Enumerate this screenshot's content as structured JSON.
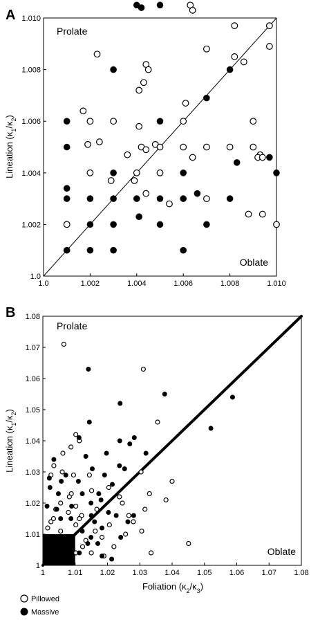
{
  "chart_data": [
    {
      "type": "scatter",
      "panel": "A",
      "xlabel": "",
      "ylabel_parts": [
        "Lineation (κ",
        "1",
        "/κ",
        "2",
        ")"
      ],
      "xlim": [
        1.0,
        1.01
      ],
      "ylim": [
        1.0,
        1.01
      ],
      "x_ticks": [
        1.0,
        1.002,
        1.004,
        1.006,
        1.008,
        1.01
      ],
      "y_ticks": [
        1.0,
        1.002,
        1.004,
        1.006,
        1.008,
        1.01
      ],
      "x_tick_labels": [
        "1.0",
        "1.002",
        "1.004",
        "1.006",
        "1.008",
        "1.010"
      ],
      "y_tick_labels": [
        "1.0",
        "1.002",
        "1.004",
        "1.006",
        "1.008",
        "1.010"
      ],
      "corner_labels": {
        "top_left": "Prolate",
        "bottom_right": "Oblate"
      },
      "reference_line": {
        "x": [
          1.0,
          1.01
        ],
        "y": [
          1.0,
          1.01
        ]
      },
      "series": [
        {
          "style": "open",
          "points": [
            [
              1.0017,
              1.0064
            ],
            [
              1.0023,
              1.0086
            ],
            [
              1.0044,
              1.0082
            ],
            [
              1.0045,
              1.008
            ],
            [
              1.0043,
              1.0075
            ],
            [
              1.0041,
              1.0072
            ],
            [
              1.0063,
              1.0105
            ],
            [
              1.0064,
              1.0103
            ],
            [
              1.007,
              1.0088
            ],
            [
              1.0082,
              1.0085
            ],
            [
              1.0086,
              1.0083
            ],
            [
              1.0082,
              1.0097
            ],
            [
              1.0097,
              1.0097
            ],
            [
              1.0097,
              1.0089
            ],
            [
              1.0061,
              1.0067
            ],
            [
              1.001,
              1.002
            ],
            [
              1.002,
              1.004
            ],
            [
              1.002,
              1.006
            ],
            [
              1.0019,
              1.0051
            ],
            [
              1.0024,
              1.0052
            ],
            [
              1.003,
              1.006
            ],
            [
              1.0029,
              1.0037
            ],
            [
              1.0036,
              1.0047
            ],
            [
              1.0039,
              1.0037
            ],
            [
              1.004,
              1.004
            ],
            [
              1.0041,
              1.0058
            ],
            [
              1.0042,
              1.005
            ],
            [
              1.0044,
              1.0049
            ],
            [
              1.0044,
              1.0032
            ],
            [
              1.0048,
              1.0051
            ],
            [
              1.005,
              1.005
            ],
            [
              1.005,
              1.004
            ],
            [
              1.0054,
              1.0028
            ],
            [
              1.006,
              1.006
            ],
            [
              1.006,
              1.005
            ],
            [
              1.0064,
              1.0046
            ],
            [
              1.007,
              1.005
            ],
            [
              1.007,
              1.003
            ],
            [
              1.008,
              1.005
            ],
            [
              1.0088,
              1.0024
            ],
            [
              1.009,
              1.006
            ],
            [
              1.009,
              1.005
            ],
            [
              1.0093,
              1.0047
            ],
            [
              1.0092,
              1.0046
            ],
            [
              1.0094,
              1.0046
            ],
            [
              1.0094,
              1.0024
            ],
            [
              1.01,
              1.002
            ]
          ]
        },
        {
          "style": "filled",
          "points": [
            [
              1.004,
              1.0105
            ],
            [
              1.0042,
              1.0104
            ],
            [
              1.005,
              1.0105
            ],
            [
              1.003,
              1.008
            ],
            [
              1.008,
              1.008
            ],
            [
              1.007,
              1.0069
            ],
            [
              1.001,
              1.006
            ],
            [
              1.001,
              1.005
            ],
            [
              1.001,
              1.0034
            ],
            [
              1.001,
              1.003
            ],
            [
              1.001,
              1.001
            ],
            [
              1.002,
              1.003
            ],
            [
              1.002,
              1.002
            ],
            [
              1.002,
              1.001
            ],
            [
              1.003,
              1.004
            ],
            [
              1.003,
              1.003
            ],
            [
              1.003,
              1.002
            ],
            [
              1.003,
              1.001
            ],
            [
              1.004,
              1.003
            ],
            [
              1.0041,
              1.0023
            ],
            [
              1.005,
              1.006
            ],
            [
              1.005,
              1.003
            ],
            [
              1.005,
              1.002
            ],
            [
              1.006,
              1.004
            ],
            [
              1.006,
              1.003
            ],
            [
              1.006,
              1.001
            ],
            [
              1.0066,
              1.0032
            ],
            [
              1.007,
              1.002
            ],
            [
              1.008,
              1.003
            ],
            [
              1.0083,
              1.0044
            ],
            [
              1.0097,
              1.0046
            ],
            [
              1.01,
              1.004
            ]
          ]
        }
      ]
    },
    {
      "type": "scatter",
      "panel": "B",
      "xlabel_parts": [
        "Foliation (κ",
        "2",
        "/κ",
        "3",
        ")"
      ],
      "ylabel_parts": [
        "Lineation (κ",
        "1",
        "/κ",
        "2",
        ")"
      ],
      "xlim": [
        1.0,
        1.08
      ],
      "ylim": [
        1.0,
        1.08
      ],
      "x_ticks": [
        1.0,
        1.01,
        1.02,
        1.03,
        1.04,
        1.05,
        1.06,
        1.07,
        1.08
      ],
      "y_ticks": [
        1.0,
        1.01,
        1.02,
        1.03,
        1.04,
        1.05,
        1.06,
        1.07,
        1.08
      ],
      "x_tick_labels": [
        "1",
        "1.01",
        "1.02",
        "1.03",
        "1.04",
        "1.05",
        "1.06",
        "1.07",
        "1.08"
      ],
      "y_tick_labels": [
        "1",
        "1.01",
        "1.02",
        "1.03",
        "1.04",
        "1.05",
        "1.06",
        "1.07",
        "1.08"
      ],
      "corner_labels": {
        "top_left": "Prolate",
        "bottom_right": "Oblate"
      },
      "reference_line": {
        "x": [
          1.0,
          1.08
        ],
        "y": [
          1.0,
          1.08
        ]
      },
      "dense_region": {
        "x": [
          1.0,
          1.01
        ],
        "y": [
          1.0,
          1.01
        ]
      },
      "legend": [
        {
          "style": "open",
          "label": "Pillowed"
        },
        {
          "style": "filled",
          "label": "Massive"
        }
      ],
      "series": [
        {
          "name": "Pillowed",
          "style": "open",
          "points": [
            [
              1.0065,
              1.071
            ],
            [
              1.0311,
              1.063
            ],
            [
              1.0102,
              1.042
            ],
            [
              1.0113,
              1.04
            ],
            [
              1.0087,
              1.038
            ],
            [
              1.0062,
              1.036
            ],
            [
              1.0034,
              1.032
            ],
            [
              1.0095,
              1.029
            ],
            [
              1.0144,
              1.029
            ],
            [
              1.0204,
              1.025
            ],
            [
              1.0246,
              1.02
            ],
            [
              1.0304,
              1.03
            ],
            [
              1.0355,
              1.046
            ],
            [
              1.04,
              1.027
            ],
            [
              1.0381,
              1.021
            ],
            [
              1.0451,
              1.007
            ],
            [
              1.0335,
              1.004
            ],
            [
              1.0316,
              1.018
            ],
            [
              1.0256,
              1.01
            ],
            [
              1.022,
              1.006
            ],
            [
              1.0151,
              1.024
            ],
            [
              1.0088,
              1.023
            ],
            [
              1.0055,
              1.02
            ],
            [
              1.0033,
              1.015
            ],
            [
              1.004,
              1.018
            ],
            [
              1.0079,
              1.017
            ],
            [
              1.012,
              1.016
            ],
            [
              1.0167,
              1.018
            ],
            [
              1.0183,
              1.009
            ],
            [
              1.0123,
              1.006
            ],
            [
              1.0102,
              1.004
            ],
            [
              1.015,
              1.004
            ],
            [
              1.0162,
              1.011
            ],
            [
              1.0055,
              1.011
            ],
            [
              1.0025,
              1.014
            ],
            [
              1.0015,
              1.012
            ],
            [
              1.0102,
              1.013
            ],
            [
              1.0133,
              1.008
            ],
            [
              1.0266,
              1.016
            ],
            [
              1.028,
              1.014
            ],
            [
              1.0306,
              1.011
            ],
            [
              1.033,
              1.023
            ],
            [
              1.0189,
              1.003
            ],
            [
              1.0206,
              1.013
            ],
            [
              1.0237,
              1.022
            ],
            [
              1.0113,
              1.015
            ],
            [
              1.0082,
              1.022
            ],
            [
              1.006,
              1.03
            ],
            [
              1.0025,
              1.029
            ],
            [
              1.0102,
              1.019
            ]
          ]
        },
        {
          "name": "Massive",
          "style": "filled",
          "points": [
            [
              1.0141,
              1.063
            ],
            [
              1.0239,
              1.052
            ],
            [
              1.0377,
              1.055
            ],
            [
              1.0587,
              1.054
            ],
            [
              1.052,
              1.044
            ],
            [
              1.0144,
              1.046
            ],
            [
              1.0112,
              1.041
            ],
            [
              1.0133,
              1.035
            ],
            [
              1.0197,
              1.036
            ],
            [
              1.0238,
              1.04
            ],
            [
              1.0269,
              1.039
            ],
            [
              1.0283,
              1.041
            ],
            [
              1.0319,
              1.036
            ],
            [
              1.0253,
              1.031
            ],
            [
              1.0215,
              1.026
            ],
            [
              1.018,
              1.021
            ],
            [
              1.0203,
              1.017
            ],
            [
              1.0227,
              1.016
            ],
            [
              1.0281,
              1.016
            ],
            [
              1.0263,
              1.014
            ],
            [
              1.016,
              1.014
            ],
            [
              1.0149,
              1.009
            ],
            [
              1.0113,
              1.004
            ],
            [
              1.0183,
              1.003
            ],
            [
              1.0213,
              1.002
            ],
            [
              1.0122,
              1.023
            ],
            [
              1.0071,
              1.029
            ],
            [
              1.0034,
              1.034
            ],
            [
              1.002,
              1.028
            ],
            [
              1.0048,
              1.023
            ],
            [
              1.011,
              1.027
            ],
            [
              1.0153,
              1.031
            ],
            [
              1.0191,
              1.029
            ],
            [
              1.0055,
              1.015
            ],
            [
              1.0087,
              1.015
            ],
            [
              1.0122,
              1.011
            ],
            [
              1.015,
              1.016
            ],
            [
              1.0049,
              1.005
            ],
            [
              1.0043,
              1.018
            ],
            [
              1.0013,
              1.019
            ],
            [
              1.0022,
              1.025
            ],
            [
              1.0183,
              1.012
            ],
            [
              1.0241,
              1.009
            ],
            [
              1.0139,
              1.007
            ],
            [
              1.017,
              1.007
            ],
            [
              1.0089,
              1.019
            ],
            [
              1.0057,
              1.027
            ],
            [
              1.0237,
              1.032
            ],
            [
              1.0173,
              1.023
            ],
            [
              1.0149,
              1.02
            ]
          ]
        }
      ]
    }
  ]
}
